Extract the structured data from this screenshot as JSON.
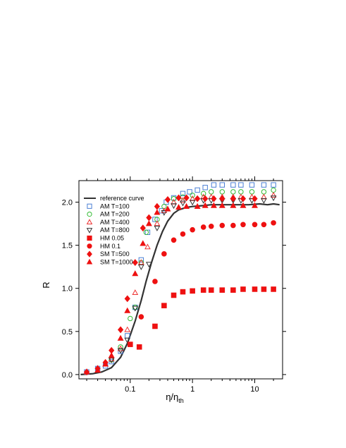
{
  "chart_data": {
    "type": "scatter",
    "x_scale": "log",
    "xlim": [
      0.015,
      28
    ],
    "ylim": [
      -0.05,
      2.25
    ],
    "x_ticks": [
      {
        "value": 0.1,
        "label": "0.1"
      },
      {
        "value": 1,
        "label": "1"
      },
      {
        "value": 10,
        "label": "10"
      }
    ],
    "y_ticks": [
      {
        "value": 0.0,
        "label": "0.0"
      },
      {
        "value": 0.5,
        "label": "0.5"
      },
      {
        "value": 1.0,
        "label": "1.0"
      },
      {
        "value": 1.5,
        "label": "1.5"
      },
      {
        "value": 2.0,
        "label": "2.0"
      }
    ],
    "xlabel": {
      "main": "η/η",
      "sub": "th"
    },
    "ylabel": "R",
    "legend_position": "top-left",
    "reference_curve": {
      "name": "reference curve",
      "color": "#333333",
      "points": [
        [
          0.016,
          0.0
        ],
        [
          0.025,
          0.01
        ],
        [
          0.035,
          0.03
        ],
        [
          0.05,
          0.08
        ],
        [
          0.07,
          0.2
        ],
        [
          0.09,
          0.36
        ],
        [
          0.12,
          0.62
        ],
        [
          0.15,
          0.86
        ],
        [
          0.18,
          1.08
        ],
        [
          0.22,
          1.3
        ],
        [
          0.27,
          1.5
        ],
        [
          0.33,
          1.66
        ],
        [
          0.4,
          1.78
        ],
        [
          0.5,
          1.87
        ],
        [
          0.6,
          1.91
        ],
        [
          0.8,
          1.94
        ],
        [
          1.0,
          1.95
        ],
        [
          1.5,
          1.96
        ],
        [
          2.0,
          1.97
        ],
        [
          3.0,
          1.97
        ],
        [
          5.0,
          1.97
        ],
        [
          8.0,
          1.97
        ],
        [
          12.0,
          1.98
        ],
        [
          16.0,
          1.97
        ],
        [
          20.0,
          1.98
        ],
        [
          25.0,
          1.97
        ]
      ]
    },
    "series": [
      {
        "name": "AM T=100",
        "marker": "square",
        "filled": false,
        "color": "#4a7fd4",
        "points": [
          [
            0.02,
            0.03
          ],
          [
            0.03,
            0.07
          ],
          [
            0.04,
            0.1
          ],
          [
            0.05,
            0.15
          ],
          [
            0.07,
            0.27
          ],
          [
            0.09,
            0.45
          ],
          [
            0.12,
            0.78
          ],
          [
            0.15,
            1.33
          ],
          [
            0.19,
            1.65
          ],
          [
            0.25,
            1.8
          ],
          [
            0.32,
            1.9
          ],
          [
            0.38,
            2.0
          ],
          [
            0.5,
            2.05
          ],
          [
            0.7,
            2.1
          ],
          [
            0.9,
            2.12
          ],
          [
            1.2,
            2.14
          ],
          [
            1.6,
            2.17
          ],
          [
            2.2,
            2.2
          ],
          [
            3.0,
            2.2
          ],
          [
            4.5,
            2.2
          ],
          [
            6.0,
            2.2
          ],
          [
            9.0,
            2.2
          ],
          [
            14.0,
            2.2
          ],
          [
            20.0,
            2.2
          ]
        ]
      },
      {
        "name": "AM T=200",
        "marker": "circle",
        "filled": false,
        "color": "#33bb33",
        "points": [
          [
            0.05,
            0.17
          ],
          [
            0.07,
            0.32
          ],
          [
            0.1,
            0.65
          ],
          [
            0.12,
            0.78
          ],
          [
            0.15,
            1.3
          ],
          [
            0.18,
            1.65
          ],
          [
            0.27,
            1.8
          ],
          [
            0.35,
            1.95
          ],
          [
            0.5,
            2.04
          ],
          [
            0.7,
            2.06
          ],
          [
            1.0,
            2.08
          ],
          [
            1.5,
            2.1
          ],
          [
            2.0,
            2.12
          ],
          [
            3.0,
            2.12
          ],
          [
            4.5,
            2.12
          ],
          [
            6.0,
            2.12
          ],
          [
            9.0,
            2.12
          ],
          [
            14.0,
            2.12
          ],
          [
            20.0,
            2.14
          ]
        ]
      },
      {
        "name": "AM T=400",
        "marker": "triangle-up",
        "filled": false,
        "color": "#ee3333",
        "points": [
          [
            0.05,
            0.18
          ],
          [
            0.07,
            0.3
          ],
          [
            0.09,
            0.52
          ],
          [
            0.12,
            0.95
          ],
          [
            0.15,
            1.3
          ],
          [
            0.19,
            1.48
          ],
          [
            0.27,
            1.75
          ],
          [
            0.35,
            1.9
          ],
          [
            0.5,
            2.0
          ],
          [
            0.7,
            2.02
          ],
          [
            1.0,
            2.04
          ],
          [
            1.5,
            2.06
          ],
          [
            2.0,
            2.06
          ],
          [
            3.0,
            2.06
          ],
          [
            4.5,
            2.06
          ],
          [
            6.0,
            2.06
          ],
          [
            9.0,
            2.06
          ],
          [
            14.0,
            2.06
          ],
          [
            20.0,
            2.08
          ]
        ]
      },
      {
        "name": "AM T=800",
        "marker": "triangle-down",
        "filled": false,
        "color": "#333333",
        "points": [
          [
            0.05,
            0.17
          ],
          [
            0.07,
            0.28
          ],
          [
            0.09,
            0.4
          ],
          [
            0.12,
            0.77
          ],
          [
            0.15,
            1.25
          ],
          [
            0.2,
            1.28
          ],
          [
            0.27,
            1.7
          ],
          [
            0.35,
            1.88
          ],
          [
            0.5,
            1.96
          ],
          [
            0.7,
            1.99
          ],
          [
            1.0,
            2.0
          ],
          [
            1.5,
            2.02
          ],
          [
            2.0,
            2.02
          ],
          [
            3.0,
            2.02
          ],
          [
            4.5,
            2.02
          ],
          [
            6.0,
            2.02
          ],
          [
            9.0,
            2.02
          ],
          [
            14.0,
            2.02
          ],
          [
            20.0,
            2.05
          ]
        ]
      },
      {
        "name": "HM  0.05",
        "marker": "square",
        "filled": true,
        "color": "#ee1111",
        "points": [
          [
            0.1,
            0.35
          ],
          [
            0.14,
            0.32
          ],
          [
            0.25,
            0.56
          ],
          [
            0.35,
            0.8
          ],
          [
            0.5,
            0.92
          ],
          [
            0.7,
            0.96
          ],
          [
            1.0,
            0.97
          ],
          [
            1.5,
            0.98
          ],
          [
            2.0,
            0.98
          ],
          [
            3.0,
            0.98
          ],
          [
            4.5,
            0.98
          ],
          [
            6.5,
            0.99
          ],
          [
            10.0,
            0.99
          ],
          [
            14.0,
            0.99
          ],
          [
            20.0,
            0.99
          ]
        ]
      },
      {
        "name": "HM  0.1",
        "marker": "circle",
        "filled": true,
        "color": "#ee1111",
        "points": [
          [
            0.15,
            0.67
          ],
          [
            0.25,
            1.08
          ],
          [
            0.35,
            1.4
          ],
          [
            0.5,
            1.56
          ],
          [
            0.7,
            1.63
          ],
          [
            1.0,
            1.68
          ],
          [
            1.5,
            1.71
          ],
          [
            2.0,
            1.72
          ],
          [
            3.0,
            1.73
          ],
          [
            4.5,
            1.73
          ],
          [
            6.5,
            1.74
          ],
          [
            10.0,
            1.74
          ],
          [
            14.0,
            1.74
          ],
          [
            20.0,
            1.76
          ]
        ]
      },
      {
        "name": "SM T=500",
        "marker": "diamond",
        "filled": true,
        "color": "#ee1111",
        "points": [
          [
            0.02,
            0.03
          ],
          [
            0.03,
            0.07
          ],
          [
            0.04,
            0.14
          ],
          [
            0.05,
            0.28
          ],
          [
            0.07,
            0.52
          ],
          [
            0.09,
            0.88
          ],
          [
            0.12,
            1.3
          ],
          [
            0.16,
            1.7
          ],
          [
            0.2,
            1.82
          ],
          [
            0.27,
            1.95
          ],
          [
            0.4,
            2.03
          ],
          [
            0.6,
            2.05
          ],
          [
            0.8,
            2.05
          ],
          [
            1.2,
            2.04
          ],
          [
            1.6,
            2.04
          ],
          [
            2.2,
            2.04
          ],
          [
            3.0,
            2.04
          ],
          [
            4.5,
            2.04
          ],
          [
            6.5,
            2.04
          ],
          [
            10.0,
            2.04
          ]
        ]
      },
      {
        "name": "SM T=1000",
        "marker": "triangle-up",
        "filled": true,
        "color": "#ee1111",
        "points": [
          [
            0.02,
            0.03
          ],
          [
            0.03,
            0.05
          ],
          [
            0.04,
            0.12
          ],
          [
            0.05,
            0.22
          ],
          [
            0.07,
            0.42
          ],
          [
            0.09,
            0.74
          ],
          [
            0.12,
            1.17
          ],
          [
            0.16,
            1.52
          ],
          [
            0.2,
            1.75
          ],
          [
            0.27,
            1.88
          ],
          [
            0.4,
            1.92
          ],
          [
            0.6,
            1.94
          ],
          [
            0.8,
            1.95
          ],
          [
            1.2,
            1.95
          ],
          [
            1.6,
            1.96
          ],
          [
            2.2,
            1.96
          ],
          [
            3.0,
            1.96
          ],
          [
            4.5,
            1.96
          ],
          [
            6.5,
            1.96
          ],
          [
            10.0,
            1.96
          ]
        ]
      }
    ]
  }
}
